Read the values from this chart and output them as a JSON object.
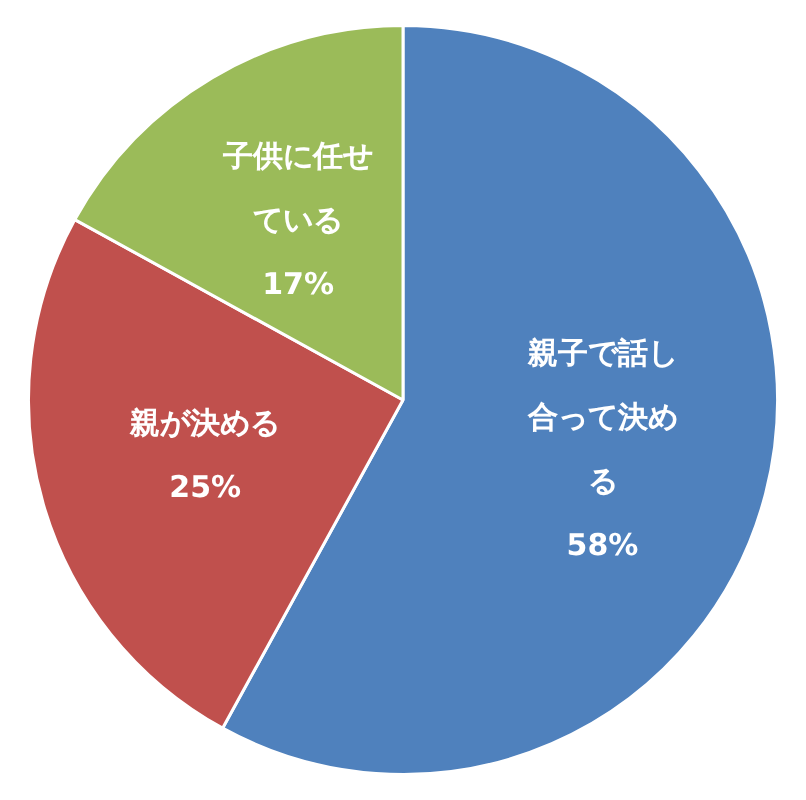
{
  "chart_data": {
    "type": "pie",
    "categories": [
      "親子で話し合って決める",
      "親が決める",
      "子供に任せている"
    ],
    "values": [
      58,
      25,
      17
    ],
    "value_labels": [
      "58%",
      "25%",
      "17%"
    ],
    "colors": [
      "#4f81bd",
      "#c0504d",
      "#9bbb59"
    ],
    "legend": false
  }
}
